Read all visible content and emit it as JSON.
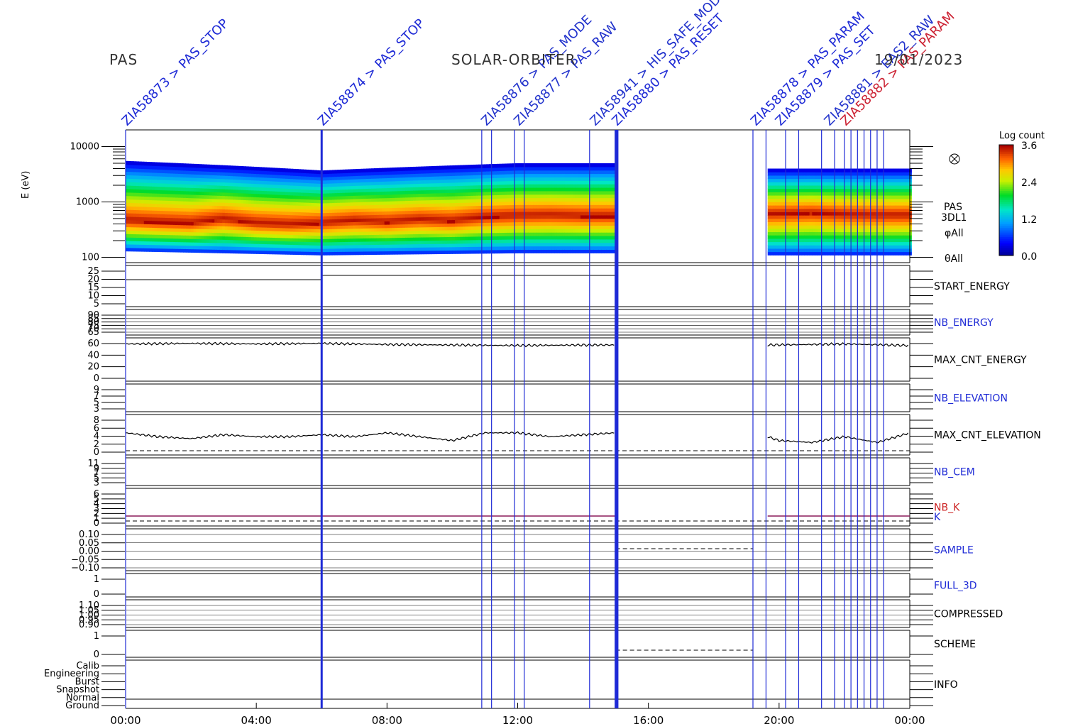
{
  "header": {
    "left": "PAS",
    "center": "SOLAR-ORBITER",
    "right": "19/01/2023"
  },
  "colorbar": {
    "title": "Log count",
    "ticks": [
      "3.6",
      "2.4",
      "1.2",
      "0.0"
    ],
    "range": [
      0.0,
      3.6
    ]
  },
  "spectrogram_side_labels": [
    "PAS",
    "3DL1",
    "φAll",
    "θAll"
  ],
  "top_annotations": [
    {
      "text": "ZIA58873 > PAS_STOP",
      "time": "00:00",
      "color": "#1f2bd6"
    },
    {
      "text": "ZIA58874 > PAS_STOP",
      "time": "06:00",
      "color": "#1f2bd6"
    },
    {
      "text": "ZIA58876 > PAS_MODE",
      "time": "11:00",
      "color": "#2233cc"
    },
    {
      "text": "ZIA58877 > PAS_RAW",
      "time": "12:00",
      "color": "#2233cc"
    },
    {
      "text": "ZIA58941 > HIS_SAFE_MODE",
      "time": "14:20",
      "color": "#2233cc"
    },
    {
      "text": "ZIA58880 > PAS_RESET",
      "time": "15:00",
      "color": "#1f2bd6"
    },
    {
      "text": "ZIA58878 > PAS_PARAM",
      "time": "19:15",
      "color": "#1f2bd6"
    },
    {
      "text": "ZIA58879 > PAS_SET",
      "time": "20:00",
      "color": "#1f2bd6"
    },
    {
      "text": "ZIA58881 > EAS2_RAW",
      "time": "21:30",
      "color": "#2233cc"
    },
    {
      "text": "ZIA58882 > PAS_PARAM",
      "time": "22:00",
      "color": "#cc2233"
    }
  ],
  "panels": [
    {
      "id": "spectrogram",
      "label": "",
      "color": "#000000",
      "ylabel": "E (eV)",
      "ticks": [
        "10000",
        "1000",
        "100"
      ]
    },
    {
      "id": "start-energy",
      "label": "START_ENERGY",
      "color": "#000000",
      "ticks": [
        "25",
        "20",
        "15",
        "10",
        "5"
      ]
    },
    {
      "id": "nb-energy",
      "label": "NB_ENERGY",
      "color": "#1f2bd6",
      "ticks": [
        "90",
        "85",
        "80",
        "75",
        "70",
        "65"
      ]
    },
    {
      "id": "max-cnt-energy",
      "label": "MAX_CNT_ENERGY",
      "color": "#000000",
      "ticks": [
        "60",
        "40",
        "20",
        "0"
      ]
    },
    {
      "id": "nb-elevation",
      "label": "NB_ELEVATION",
      "color": "#1f2bd6",
      "ticks": [
        "9",
        "7",
        "5",
        "3"
      ]
    },
    {
      "id": "max-cnt-elevation",
      "label": "MAX_CNT_ELEVATION",
      "color": "#000000",
      "ticks": [
        "8",
        "6",
        "4",
        "2",
        "0"
      ]
    },
    {
      "id": "nb-cem",
      "label": "NB_CEM",
      "color": "#1f2bd6",
      "ticks": [
        "11",
        "9",
        "7",
        "5",
        "3"
      ]
    },
    {
      "id": "nb-k",
      "label": "NB_K",
      "color": "#cc2222",
      "label2": "K",
      "label2_color": "#1f2bd6",
      "ticks": [
        "6",
        "5",
        "4",
        "3",
        "2",
        "1",
        "0"
      ]
    },
    {
      "id": "sample",
      "label": "SAMPLE",
      "color": "#1f2bd6",
      "ticks": [
        "0.10",
        "0.05",
        "0.00",
        "−0.05",
        "−0.10"
      ]
    },
    {
      "id": "full-3d",
      "label": "FULL_3D",
      "color": "#1f2bd6",
      "ticks": [
        "1",
        "0"
      ]
    },
    {
      "id": "compressed",
      "label": "COMPRESSED",
      "color": "#000000",
      "ticks": [
        "1.10",
        "1.05",
        "1.00",
        "0.95",
        "0.90"
      ]
    },
    {
      "id": "scheme",
      "label": "SCHEME",
      "color": "#000000",
      "ticks": [
        "1",
        "0"
      ]
    },
    {
      "id": "info",
      "label": "INFO",
      "color": "#000000",
      "ticks": [
        "Calib",
        "Engineering",
        "Burst",
        "Snapshot",
        "Normal",
        "Ground"
      ]
    }
  ],
  "chart_data": {
    "type": "heatmap",
    "title": "SOLAR-ORBITER",
    "date": "19/01/2023",
    "x_axis": {
      "labels": [
        "00:00",
        "04:00",
        "08:00",
        "12:00",
        "16:00",
        "20:00",
        "00:00"
      ],
      "range_hours": [
        0,
        24
      ]
    },
    "spectrogram": {
      "ylabel": "E (eV)",
      "yscale": "log",
      "ylim": [
        100,
        20000
      ],
      "colorbar_label": "Log count",
      "colorbar_range": [
        0.0,
        3.6
      ],
      "data_intervals_hours": [
        [
          0,
          6.0
        ],
        [
          6.0,
          12.0
        ],
        [
          12.0,
          15.0
        ],
        [
          19.65,
          24
        ]
      ],
      "peak_energy_eV": [
        [
          0,
          450
        ],
        [
          1,
          420
        ],
        [
          2,
          400
        ],
        [
          3,
          480
        ],
        [
          4,
          400
        ],
        [
          5,
          380
        ],
        [
          6,
          400
        ],
        [
          7,
          450
        ],
        [
          8,
          420
        ],
        [
          9,
          470
        ],
        [
          10,
          440
        ],
        [
          11,
          520
        ],
        [
          12,
          550
        ],
        [
          13,
          560
        ],
        [
          14,
          540
        ],
        [
          15,
          540
        ],
        [
          20,
          600
        ],
        [
          21,
          620
        ],
        [
          22,
          580
        ],
        [
          23,
          560
        ],
        [
          24,
          560
        ]
      ],
      "upper_energy_eV": [
        [
          0,
          5500
        ],
        [
          6,
          3700
        ],
        [
          12,
          5000
        ],
        [
          15,
          5000
        ],
        [
          19.65,
          4000
        ],
        [
          24,
          4000
        ]
      ],
      "lower_energy_eV": [
        [
          0,
          130
        ],
        [
          6,
          110
        ],
        [
          12,
          120
        ],
        [
          15,
          120
        ],
        [
          19.65,
          110
        ],
        [
          24,
          110
        ]
      ]
    },
    "max_cnt_energy": {
      "ylim": [
        0,
        70
      ],
      "points": [
        [
          0,
          64
        ],
        [
          2,
          65
        ],
        [
          4,
          64
        ],
        [
          6,
          65
        ],
        [
          8,
          63
        ],
        [
          10,
          62
        ],
        [
          12,
          61
        ],
        [
          14,
          62
        ],
        [
          15,
          62
        ],
        [
          19.65,
          62
        ],
        [
          21,
          63
        ],
        [
          22,
          64
        ],
        [
          24,
          61
        ]
      ]
    },
    "max_cnt_elevation": {
      "ylim": [
        0,
        9
      ],
      "dashed_line": 0,
      "points": [
        [
          0,
          5
        ],
        [
          1,
          4
        ],
        [
          2,
          3.5
        ],
        [
          3,
          4.5
        ],
        [
          4,
          4
        ],
        [
          5,
          4
        ],
        [
          6,
          4.5
        ],
        [
          7,
          4
        ],
        [
          8,
          5
        ],
        [
          9,
          4
        ],
        [
          10,
          3
        ],
        [
          11,
          5
        ],
        [
          12,
          5
        ],
        [
          13,
          4
        ],
        [
          14,
          4.5
        ],
        [
          15,
          5
        ],
        [
          19.65,
          4
        ],
        [
          20,
          3
        ],
        [
          21,
          2.5
        ],
        [
          22,
          4
        ],
        [
          23,
          2.5
        ],
        [
          24,
          5
        ]
      ]
    },
    "nb_k": {
      "ylim": [
        0,
        6
      ],
      "value": 1
    },
    "vertical_markers_hours": [
      0,
      6.0,
      10.9,
      11.2,
      11.9,
      12.2,
      14.2,
      15.0,
      15.05,
      19.2,
      19.6,
      20.2,
      20.6,
      21.3,
      21.7,
      22.0,
      22.2,
      22.4,
      22.6,
      22.8,
      23.0,
      23.2
    ]
  }
}
